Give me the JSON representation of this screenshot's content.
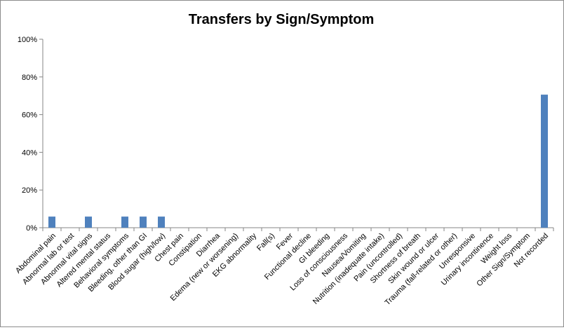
{
  "chart_data": {
    "type": "bar",
    "title": "Transfers by Sign/Symptom",
    "xlabel": "",
    "ylabel": "",
    "ylim": [
      0,
      100
    ],
    "y_ticks": [
      "0%",
      "20%",
      "40%",
      "60%",
      "80%",
      "100%"
    ],
    "y_tick_values": [
      0,
      20,
      40,
      60,
      80,
      100
    ],
    "grid": false,
    "legend": "none",
    "bar_color": "#4f81bd",
    "categories": [
      "Abdominal pain",
      "Abnormal lab or test",
      "Abnormal vital signs",
      "Altered mental status",
      "Behavioral symptoms",
      "Bleeding, other than GI",
      "Blood sugar (high/low)",
      "Chest pain",
      "Constipation",
      "Diarrhea",
      "Edema (new or worsening)",
      "EKG abnormality",
      "Fall(s)",
      "Fever",
      "Functional decline",
      "GI bleeding",
      "Loss of consciousness",
      "Nausea/Vomiting",
      "Nutrition (inadequate intake)",
      "Pain (uncontrolled)",
      "Shortness of breath",
      "Skin wound or ulcer",
      "Trauma (fall-related or other)",
      "Unresponsive",
      "Urinary incontinence",
      "Weight loss",
      "Other Sign/Symptom",
      "Not recorded"
    ],
    "values": [
      5.9,
      0,
      5.9,
      0,
      5.9,
      5.9,
      5.9,
      0,
      0,
      0,
      0,
      0,
      0,
      0,
      0,
      0,
      0,
      0,
      0,
      0,
      0,
      0,
      0,
      0,
      0,
      0,
      0,
      70.6
    ]
  }
}
